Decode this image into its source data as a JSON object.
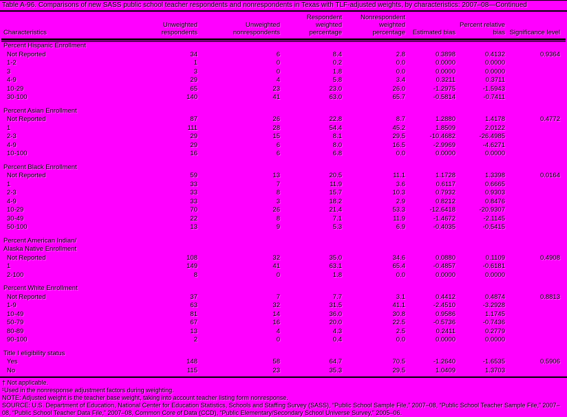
{
  "title": "Table A-96. Comparisons of new SASS public school teacher respondents and nonrespondents in Texas with TLF-adjusted weights, by characteristics: 2007–08—Continued",
  "columns": [
    "Characteristics",
    "Unweighted respondents",
    "Unweighted nonrespondents",
    "Respondent weighted percentage",
    "Nonrespondent weighted percentage",
    "Estimated bias",
    "Percent relative bias",
    "Significance level"
  ],
  "sections": [
    {
      "heading_lines": [
        "Percent Hispanic Enrollment"
      ],
      "rows": [
        {
          "label": "Not Reported",
          "cells": [
            "34",
            "6",
            "8.4",
            "2.8",
            "0.3898",
            "0.4132",
            "0.9364"
          ]
        },
        {
          "label": "1-2",
          "cells": [
            "1",
            "0",
            "0.2",
            "0.0",
            "0.0000",
            "0.0000",
            ""
          ]
        },
        {
          "label": "3",
          "cells": [
            "3",
            "0",
            "1.8",
            "0.0",
            "0.0000",
            "0.0000",
            ""
          ]
        },
        {
          "label": "4-9",
          "cells": [
            "29",
            "4",
            "5.8",
            "3.4",
            "0.3211",
            "0.3711",
            ""
          ]
        },
        {
          "label": "10-29",
          "cells": [
            "65",
            "23",
            "23.0",
            "26.0",
            "-1.2975",
            "-1.5943",
            ""
          ]
        },
        {
          "label": "30-100",
          "cells": [
            "140",
            "41",
            "63.0",
            "65.7",
            "-0.5814",
            "-0.7411",
            ""
          ]
        }
      ]
    },
    {
      "heading_lines": [
        "Percent Asian Enrollment"
      ],
      "rows": [
        {
          "label": "Not Reported",
          "cells": [
            "87",
            "26",
            "22.8",
            "8.7",
            "1.2880",
            "1.4178",
            "0.4772"
          ]
        },
        {
          "label": "1",
          "cells": [
            "111",
            "28",
            "54.4",
            "45.2",
            "1.8509",
            "2.0122",
            ""
          ]
        },
        {
          "label": "2-3",
          "cells": [
            "29",
            "15",
            "8.1",
            "29.5",
            "-10.4682",
            "-26.4985",
            ""
          ]
        },
        {
          "label": "4-9",
          "cells": [
            "29",
            "6",
            "8.0",
            "16.5",
            "-2.9969",
            "-4.6271",
            ""
          ]
        },
        {
          "label": "10-100",
          "cells": [
            "16",
            "6",
            "6.8",
            "0.0",
            "0.0000",
            "0.0000",
            ""
          ]
        }
      ]
    },
    {
      "heading_lines": [
        "Percent Black Enrollment"
      ],
      "rows": [
        {
          "label": "Not Reported",
          "cells": [
            "59",
            "13",
            "20.5",
            "11.1",
            "1.1728",
            "1.3398",
            "0.0164"
          ]
        },
        {
          "label": "1",
          "cells": [
            "33",
            "7",
            "11.9",
            "3.6",
            "0.6117",
            "0.6665",
            ""
          ]
        },
        {
          "label": "2-3",
          "cells": [
            "33",
            "8",
            "15.7",
            "10.3",
            "0.7932",
            "0.9303",
            ""
          ]
        },
        {
          "label": "4-9",
          "cells": [
            "33",
            "3",
            "18.2",
            "2.9",
            "0.8212",
            "0.8476",
            ""
          ]
        },
        {
          "label": "10-29",
          "cells": [
            "70",
            "26",
            "21.4",
            "53.3",
            "-12.6418",
            "-20.9307",
            ""
          ]
        },
        {
          "label": "30-49",
          "cells": [
            "22",
            "8",
            "7.1",
            "11.9",
            "-1.4672",
            "-2.1145",
            ""
          ]
        },
        {
          "label": "50-100",
          "cells": [
            "13",
            "9",
            "5.3",
            "6.9",
            "-0.4035",
            "-0.5415",
            ""
          ]
        }
      ]
    },
    {
      "heading_lines": [
        "Percent American Indian/",
        "Alaska Native Enrollment"
      ],
      "rows": [
        {
          "label": "Not Reported",
          "cells": [
            "108",
            "32",
            "35.0",
            "34.6",
            "0.0880",
            "0.1109",
            "0.4908"
          ]
        },
        {
          "label": "1",
          "cells": [
            "149",
            "41",
            "63.1",
            "65.4",
            "-0.4857",
            "-0.6181",
            ""
          ]
        },
        {
          "label": "2-100",
          "cells": [
            "8",
            "0",
            "1.8",
            "0.0",
            "0.0000",
            "0.0000",
            ""
          ]
        }
      ]
    },
    {
      "heading_lines": [
        "Percent White Enrollment"
      ],
      "rows": [
        {
          "label": "Not Reported",
          "cells": [
            "37",
            "7",
            "7.7",
            "3.1",
            "0.4412",
            "0.4874",
            "0.8813"
          ]
        },
        {
          "label": "1-9",
          "cells": [
            "63",
            "32",
            "31.5",
            "41.1",
            "-2.4510",
            "-3.2928",
            ""
          ]
        },
        {
          "label": "10-49",
          "cells": [
            "81",
            "14",
            "36.0",
            "30.8",
            "0.9586",
            "1.1745",
            ""
          ]
        },
        {
          "label": "50-79",
          "cells": [
            "67",
            "16",
            "20.0",
            "22.5",
            "-0.5736",
            "-0.7436",
            ""
          ]
        },
        {
          "label": "80-89",
          "cells": [
            "13",
            "4",
            "4.3",
            "2.5",
            "0.2411",
            "0.2779",
            ""
          ]
        },
        {
          "label": "90-100",
          "cells": [
            "2",
            "0",
            "0.4",
            "0.0",
            "0.0000",
            "0.0000",
            ""
          ]
        }
      ]
    },
    {
      "heading_lines": [
        "Title I eligibility status"
      ],
      "rows": [
        {
          "label": "Yes",
          "cells": [
            "148",
            "58",
            "64.7",
            "70.5",
            "-1.2640",
            "-1.6535",
            "0.5906"
          ]
        },
        {
          "label": "No",
          "cells": [
            "115",
            "23",
            "35.3",
            "29.5",
            "1.0409",
            "1.3703",
            ""
          ]
        }
      ]
    }
  ],
  "footnotes": [
    "† Not applicable.",
    "¹Used in the nonresponse adjustment factors during weighting.",
    "NOTE: Adjusted weight is the teacher base weight, taking into account teacher listing form nonresponse.",
    "SOURCE: U.S. Department of Education, National Center for Education Statistics, Schools and Staffing Survey (SASS), “Public School Sample File,” 2007–08, “Public School Teacher Sample File,” 2007–08, “Public School Teacher Data File,” 2007–08, Common Core of Data (CCD), “Public Elementary/Secondary School Universe Survey,” 2005–06."
  ],
  "colors": {
    "background": "#ff00ff",
    "text": "#000000",
    "rule": "#000000"
  }
}
